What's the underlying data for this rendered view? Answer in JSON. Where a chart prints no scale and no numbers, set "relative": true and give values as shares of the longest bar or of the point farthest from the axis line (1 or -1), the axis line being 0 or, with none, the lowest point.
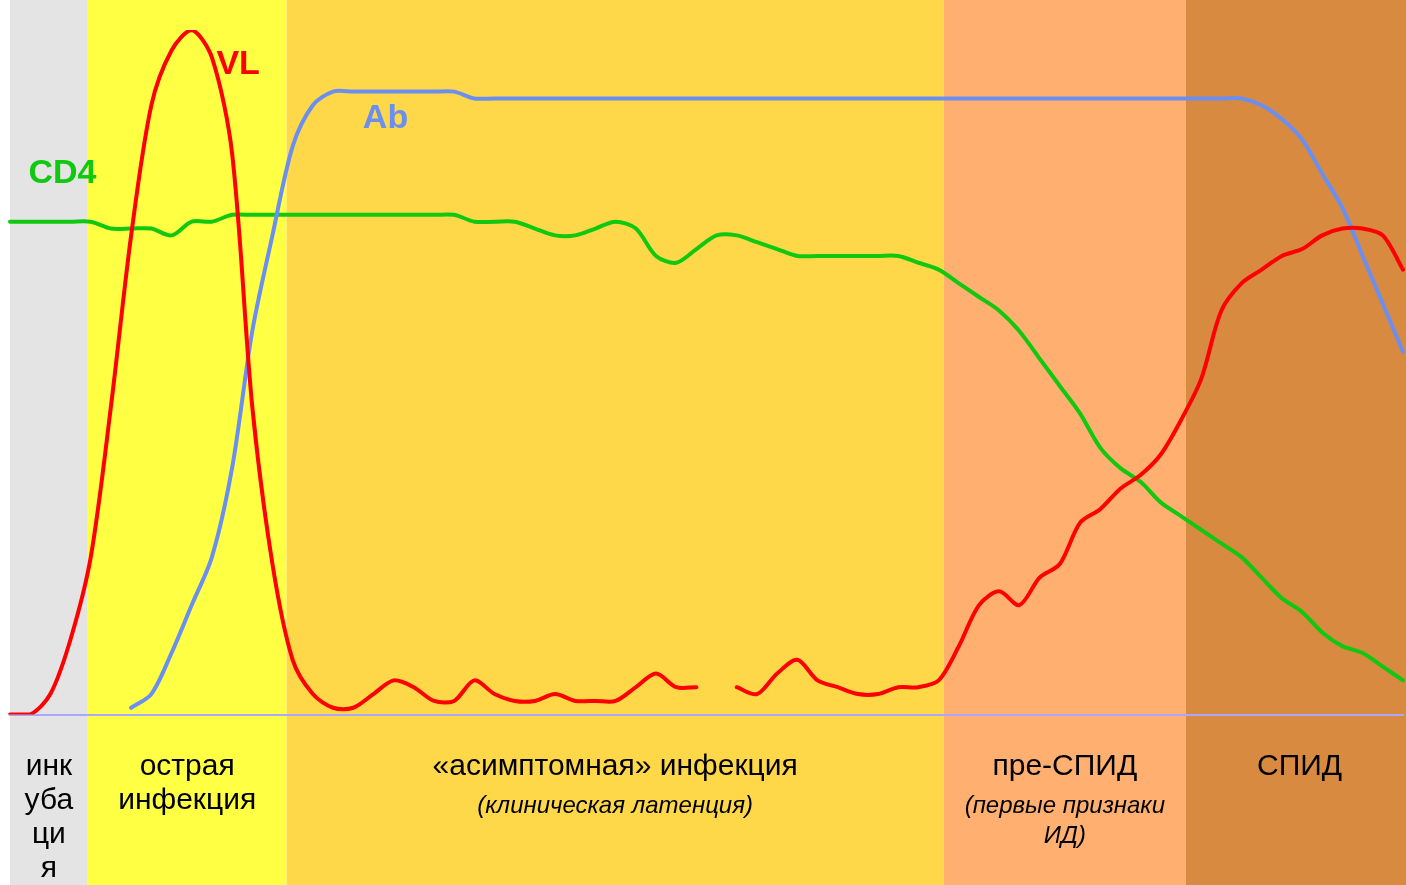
{
  "chart_data": {
    "type": "line",
    "relative": true,
    "legend": false,
    "grid": false,
    "categories": [
      null,
      null,
      null,
      null,
      null,
      null,
      null,
      null,
      null,
      null,
      null,
      null,
      null,
      null,
      null,
      null,
      null,
      null,
      null,
      null,
      null,
      null,
      null,
      null,
      null,
      null,
      null,
      null,
      null,
      null,
      null,
      null,
      null,
      null,
      null,
      null,
      null,
      null,
      null,
      null,
      null,
      null,
      null,
      null,
      null,
      null,
      null,
      null,
      null,
      null,
      null,
      null,
      null,
      null,
      null,
      null,
      null,
      null,
      null,
      null,
      null,
      null,
      null,
      null,
      null,
      null,
      null,
      null,
      null,
      null
    ],
    "series": [
      {
        "name": "VL",
        "color": "#ff0000",
        "values": [
          0,
          0,
          0.03,
          0.11,
          0.23,
          0.45,
          0.7,
          0.89,
          0.97,
          1,
          0.96,
          0.82,
          0.45,
          0.22,
          0.08,
          0.03,
          0.01,
          0.01,
          0.03,
          0.05,
          0.04,
          0.02,
          0.02,
          0.05,
          0.03,
          0.02,
          0.02,
          0.03,
          0.02,
          0.02,
          0.02,
          0.04,
          0.06,
          0.04,
          0.04,
          null,
          0.04,
          0.03,
          0.06,
          0.08,
          0.05,
          0.04,
          0.03,
          0.03,
          0.04,
          0.04,
          0.05,
          0.1,
          0.16,
          0.18,
          0.16,
          0.2,
          0.22,
          0.28,
          0.3,
          0.33,
          0.35,
          0.38,
          0.43,
          0.49,
          0.59,
          0.63,
          0.65,
          0.67,
          0.68,
          0.7,
          0.71,
          0.71,
          0.7,
          0.65
        ]
      },
      {
        "name": "Ab",
        "color": "#6a8ff0",
        "values": [
          null,
          null,
          null,
          null,
          null,
          null,
          0.01,
          0.03,
          0.09,
          0.16,
          0.23,
          0.36,
          0.56,
          0.7,
          0.83,
          0.89,
          0.91,
          0.91,
          0.91,
          0.91,
          0.91,
          0.91,
          0.91,
          0.9,
          0.9,
          0.9,
          0.9,
          0.9,
          0.9,
          0.9,
          0.9,
          0.9,
          0.9,
          0.9,
          0.9,
          0.9,
          0.9,
          0.9,
          0.9,
          0.9,
          0.9,
          0.9,
          0.9,
          0.9,
          0.9,
          0.9,
          0.9,
          0.9,
          0.9,
          0.9,
          0.9,
          0.9,
          0.9,
          0.9,
          0.9,
          0.9,
          0.9,
          0.9,
          0.9,
          0.9,
          0.9,
          0.9,
          0.89,
          0.87,
          0.84,
          0.79,
          0.74,
          0.67,
          0.6,
          0.53
        ]
      },
      {
        "name": "CD4",
        "color": "#10c810",
        "values": [
          0.72,
          0.72,
          0.72,
          0.72,
          0.72,
          0.71,
          0.71,
          0.71,
          0.7,
          0.72,
          0.72,
          0.73,
          0.73,
          0.73,
          0.73,
          0.73,
          0.73,
          0.73,
          0.73,
          0.73,
          0.73,
          0.73,
          0.73,
          0.72,
          0.72,
          0.72,
          0.71,
          0.7,
          0.7,
          0.71,
          0.72,
          0.71,
          0.67,
          0.66,
          0.68,
          0.7,
          0.7,
          0.69,
          0.68,
          0.67,
          0.67,
          0.67,
          0.67,
          0.67,
          0.67,
          0.66,
          0.65,
          0.63,
          0.61,
          0.59,
          0.56,
          0.52,
          0.48,
          0.44,
          0.39,
          0.36,
          0.34,
          0.31,
          0.29,
          0.27,
          0.25,
          0.23,
          0.2,
          0.17,
          0.15,
          0.12,
          0.1,
          0.09,
          0.07,
          0.05
        ]
      }
    ],
    "annotations": [
      "инкубация",
      "острая инфекция",
      "«асимптомная» инфекция\n(клиническая латенция)",
      "пре-СПИД\n(первые признаки ИД)",
      "СПИД"
    ]
  }
}
